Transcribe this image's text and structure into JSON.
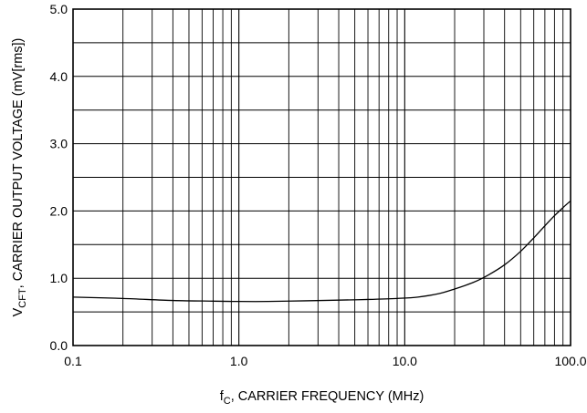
{
  "chart_data": {
    "type": "line",
    "x_scale": "log",
    "xlim": [
      0.1,
      100
    ],
    "ylim": [
      0,
      5
    ],
    "grid": true,
    "x_ticks": [
      {
        "value": 0.1,
        "label": "0.1"
      },
      {
        "value": 1,
        "label": "1.0"
      },
      {
        "value": 10,
        "label": "10.0"
      },
      {
        "value": 100,
        "label": "100.0"
      }
    ],
    "y_ticks": [
      {
        "value": 0,
        "label": "0.0"
      },
      {
        "value": 1,
        "label": "1.0"
      },
      {
        "value": 2,
        "label": "2.0"
      },
      {
        "value": 3,
        "label": "3.0"
      },
      {
        "value": 4,
        "label": "4.0"
      },
      {
        "value": 5,
        "label": "5.0"
      }
    ],
    "y_minor_lines": [
      0.5,
      1.5,
      2.5,
      3.5,
      4.5
    ],
    "xlabel": {
      "main": "f",
      "sub": "C",
      "rest": ", CARRIER FREQUENCY (MHz)"
    },
    "ylabel": {
      "main": "V",
      "sub": "CFT",
      "rest": ", CARRIER OUTPUT VOLTAGE (mV[rms])"
    },
    "series": [
      {
        "x": [
          0.1,
          0.2,
          0.4,
          0.7,
          1.0,
          1.5,
          2.5,
          4,
          6,
          9,
          12,
          16,
          20,
          26,
          32,
          40,
          50,
          60,
          70,
          80,
          90,
          100
        ],
        "y": [
          0.72,
          0.7,
          0.67,
          0.66,
          0.655,
          0.655,
          0.665,
          0.675,
          0.685,
          0.7,
          0.72,
          0.77,
          0.84,
          0.94,
          1.05,
          1.2,
          1.4,
          1.6,
          1.78,
          1.93,
          2.05,
          2.15
        ]
      }
    ]
  }
}
